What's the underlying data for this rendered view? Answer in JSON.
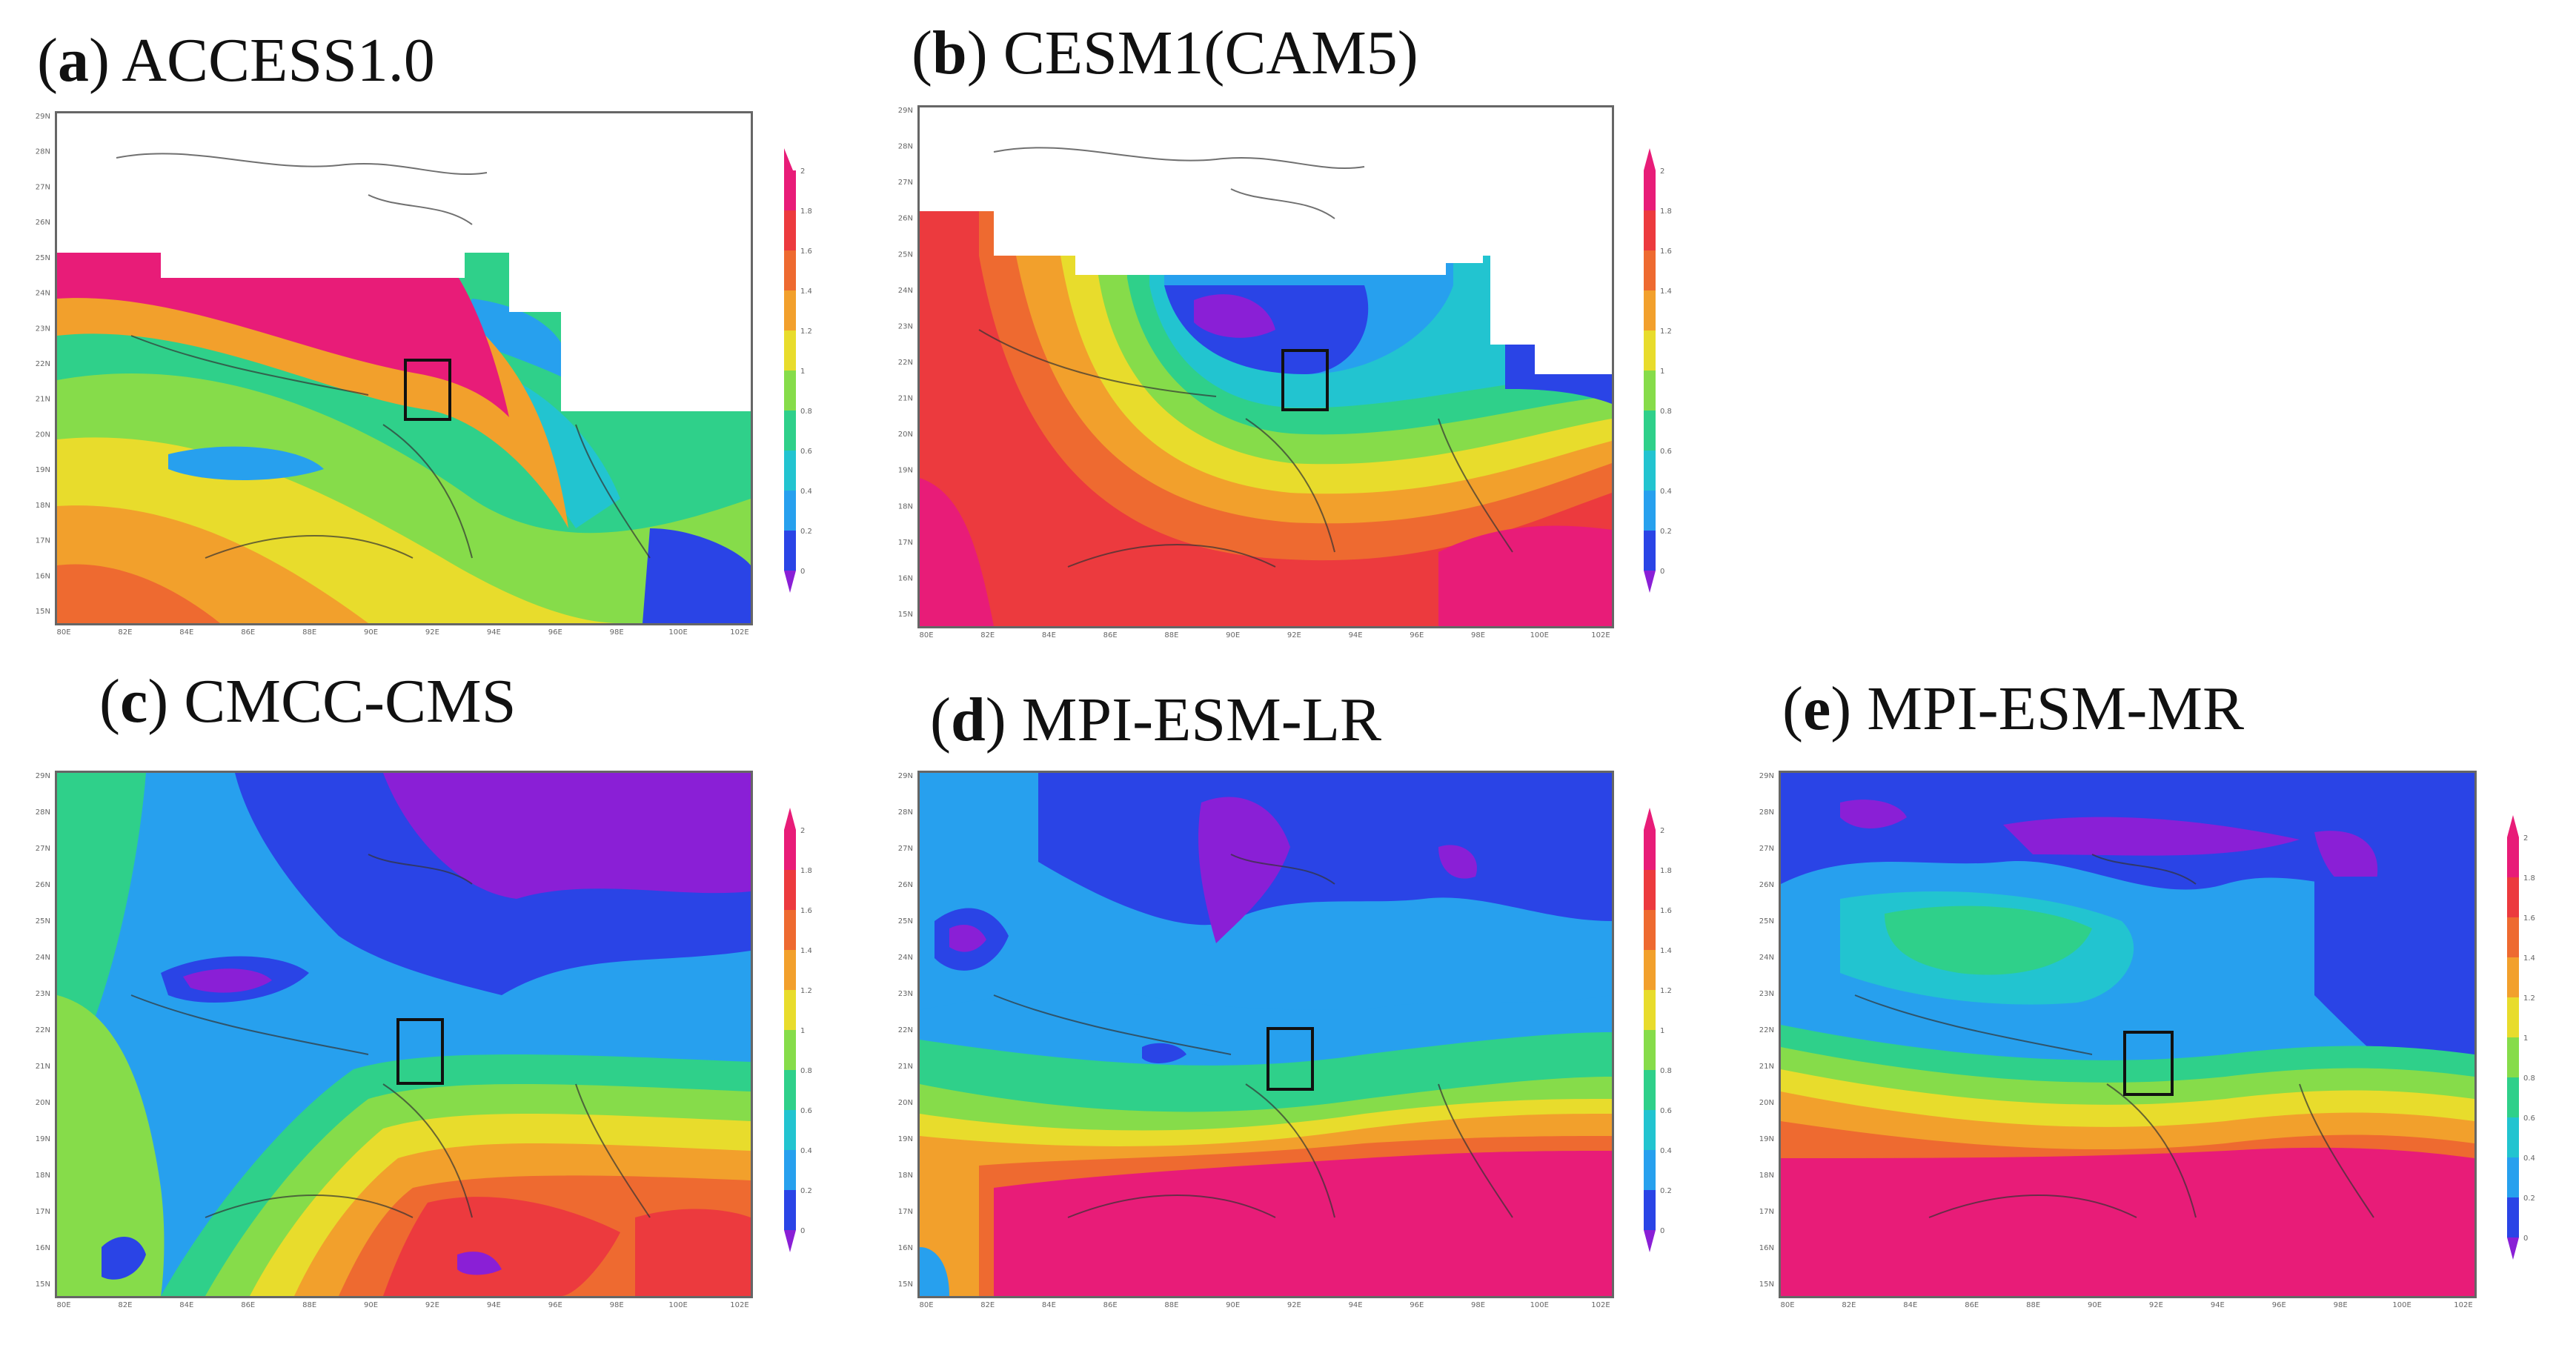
{
  "figure": {
    "panels": [
      {
        "id": "a",
        "letter": "a",
        "model": "ACCESS1.0"
      },
      {
        "id": "b",
        "letter": "b",
        "model": "CESM1(CAM5)"
      },
      {
        "id": "c",
        "letter": "c",
        "model": "CMCC-CMS"
      },
      {
        "id": "d",
        "letter": "d",
        "model": "MPI-ESM-LR"
      },
      {
        "id": "e",
        "letter": "e",
        "model": "MPI-ESM-MR"
      }
    ],
    "lat_labels": [
      "29N",
      "28N",
      "27N",
      "26N",
      "25N",
      "24N",
      "23N",
      "22N",
      "21N",
      "20N",
      "19N",
      "18N",
      "17N",
      "16N",
      "15N"
    ],
    "lon_labels": [
      "80E",
      "82E",
      "84E",
      "86E",
      "88E",
      "90E",
      "92E",
      "94E",
      "96E",
      "98E",
      "100E",
      "102E"
    ],
    "colorbar_levels": [
      "2",
      "1.8",
      "1.6",
      "1.4",
      "1.2",
      "1",
      "0.8",
      "0.6",
      "0.4",
      "0.2",
      "0"
    ],
    "colors": {
      "purple": "#8a1fd6",
      "blue": "#2a44e6",
      "lightblue": "#27a0ee",
      "cyan": "#22c4d0",
      "green": "#2fd08a",
      "lightgreen": "#86dc4a",
      "yellow": "#e8dc2c",
      "orange": "#f2a02c",
      "darkorange": "#ee6a30",
      "red": "#ec3a3e",
      "magenta": "#e81c78"
    }
  }
}
